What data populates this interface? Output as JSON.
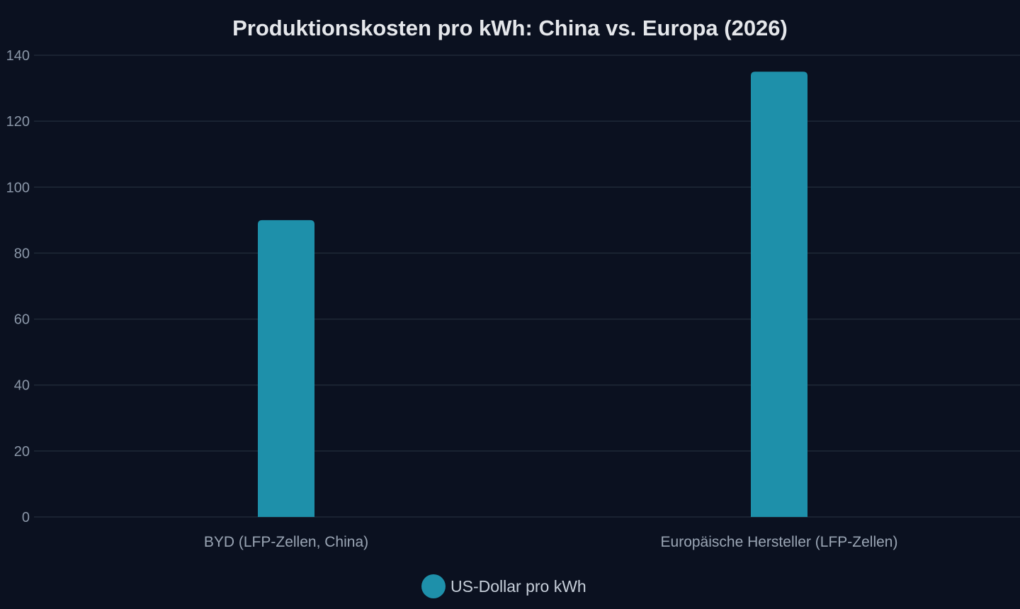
{
  "chart_data": {
    "type": "bar",
    "title": "Produktionskosten pro kWh: China vs. Europa (2026)",
    "xlabel": "",
    "ylabel": "",
    "categories": [
      "BYD (LFP-Zellen, China)",
      "Europäische Hersteller (LFP-Zellen)"
    ],
    "series": [
      {
        "name": "US-Dollar pro kWh",
        "values": [
          90,
          135
        ],
        "color": "#1e90aa"
      }
    ],
    "ylim": [
      0,
      140
    ],
    "yticks": [
      0,
      20,
      40,
      60,
      80,
      100,
      120,
      140
    ],
    "grid": true,
    "legend_position": "bottom"
  },
  "colors": {
    "background": "#0b1120",
    "grid": "#1f2937",
    "bar": "#1e90aa"
  }
}
